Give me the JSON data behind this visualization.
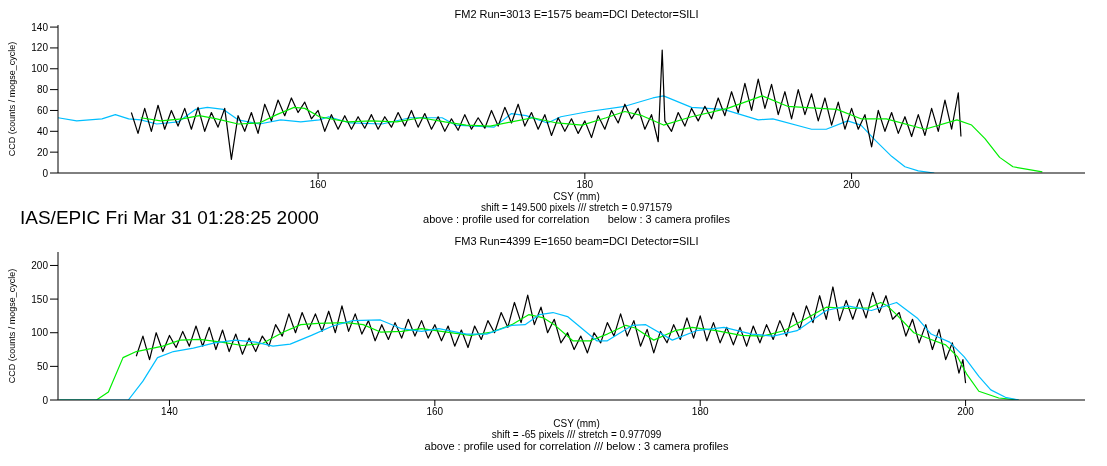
{
  "chart_data": [
    {
      "type": "line",
      "title": "FM2 Run=3013 E=1575 beam=DCI Detector=SILI",
      "xlabel": "CSY (mm)",
      "ylabel": "CCD (counts / mogse_cycle)",
      "xlim": [
        140.5,
        217.5
      ],
      "xticks": [
        160,
        180,
        200
      ],
      "ylim": [
        0,
        142
      ],
      "yticks": [
        0,
        20,
        40,
        60,
        80,
        100,
        120,
        140
      ],
      "marker": "none",
      "line_style": "solid",
      "annotations": [
        "shift = 149.500 pixels /// stretch = 0.971579",
        "above : profile used for correlation      below : 3 camera profiles",
        "IAS/EPIC Fri Mar 31 01:28:25 2000"
      ],
      "series": [
        {
          "color": "#00bfff",
          "x": [
            140.5,
            141.9,
            143.8,
            144.8,
            145.8,
            146.7,
            147.9,
            149.5,
            150.8,
            151.7,
            152.9,
            154.0,
            155.6,
            157.2,
            158.7,
            160.1,
            160.8,
            162.4,
            164.8,
            166.9,
            169.3,
            170.3,
            173.2,
            174.5,
            175.6,
            177.2,
            178.2,
            180.3,
            183,
            185.1,
            185.9,
            188,
            190.4,
            193,
            194.1,
            197,
            198.1,
            199.7,
            200.7,
            201.8,
            203,
            204,
            205,
            206.2
          ],
          "values": [
            53,
            50,
            52,
            56,
            52,
            51,
            47,
            49,
            61,
            63,
            61,
            51,
            47,
            51,
            49,
            51,
            54,
            48,
            47,
            53,
            53,
            46,
            44,
            57,
            55,
            48,
            54,
            59,
            64,
            72,
            74,
            63,
            61,
            51,
            52,
            42,
            42,
            50,
            46,
            31,
            16,
            6,
            2,
            0
          ]
        },
        {
          "color": "#000000",
          "x": [
            146,
            146.5,
            147,
            147.5,
            148,
            148.5,
            149,
            149.5,
            150,
            150.5,
            151,
            151.5,
            152,
            152.5,
            153,
            153.5,
            154,
            154.5,
            155,
            155.5,
            156,
            156.5,
            157,
            157.5,
            158,
            158.5,
            159,
            159.5,
            160,
            160.5,
            161,
            161.5,
            162,
            162.5,
            163,
            163.5,
            164,
            164.5,
            165,
            165.5,
            166,
            166.5,
            167,
            167.5,
            168,
            168.5,
            169,
            169.5,
            170,
            170.5,
            171,
            171.5,
            172,
            172.5,
            173,
            173.5,
            174,
            174.5,
            175,
            175.5,
            176,
            176.5,
            177,
            177.5,
            178,
            178.5,
            179,
            179.5,
            180,
            180.5,
            181,
            181.5,
            182,
            182.5,
            183,
            183.5,
            184,
            184.5,
            185,
            185.5,
            185.8,
            186,
            186.5,
            187,
            187.5,
            188,
            188.5,
            189,
            189.5,
            190,
            190.5,
            191,
            191.5,
            192,
            192.5,
            193,
            193.5,
            194,
            194.5,
            195,
            195.5,
            196,
            196.5,
            197,
            197.5,
            198,
            198.5,
            199,
            199.5,
            200,
            200.5,
            201,
            201.5,
            202,
            202.5,
            203,
            203.5,
            204,
            204.5,
            205,
            205.5,
            206,
            206.5,
            207,
            207.5,
            208,
            208.2
          ],
          "values": [
            58,
            38,
            62,
            40,
            65,
            42,
            60,
            45,
            62,
            42,
            63,
            40,
            58,
            44,
            62,
            13,
            55,
            40,
            58,
            38,
            66,
            50,
            70,
            55,
            72,
            58,
            68,
            52,
            60,
            40,
            56,
            42,
            55,
            42,
            54,
            43,
            56,
            42,
            54,
            44,
            58,
            45,
            60,
            44,
            57,
            42,
            54,
            40,
            52,
            41,
            56,
            42,
            53,
            43,
            60,
            45,
            63,
            48,
            66,
            45,
            58,
            42,
            56,
            36,
            53,
            40,
            52,
            38,
            50,
            34,
            55,
            42,
            60,
            48,
            66,
            52,
            62,
            42,
            56,
            30,
            118,
            50,
            40,
            58,
            45,
            62,
            50,
            64,
            52,
            72,
            55,
            78,
            58,
            86,
            60,
            90,
            62,
            85,
            56,
            78,
            52,
            80,
            56,
            76,
            50,
            72,
            46,
            68,
            42,
            62,
            42,
            56,
            25,
            60,
            40,
            58,
            38,
            54,
            35,
            56,
            36,
            62,
            40,
            70,
            42,
            77,
            35
          ]
        },
        {
          "color": "#00ee00",
          "x": [
            146.7,
            148.2,
            149.8,
            151.1,
            152.4,
            154.0,
            155.6,
            156.9,
            158.2,
            159.0,
            160.1,
            162.2,
            164.0,
            165.9,
            167.7,
            169.5,
            171.1,
            172.9,
            174.5,
            176.1,
            177.9,
            179.8,
            181.6,
            183,
            184.3,
            185.9,
            188,
            190.7,
            193.3,
            195.2,
            197.6,
            198.9,
            200.7,
            202.6,
            205.5,
            207.9,
            209,
            210,
            211.1,
            212.1,
            214.3
          ],
          "values": [
            53,
            50,
            52,
            55,
            52,
            47,
            48,
            56,
            63,
            62,
            54,
            49,
            50,
            49,
            53,
            49,
            46,
            45,
            49,
            53,
            48,
            46,
            53,
            59,
            55,
            46,
            54,
            62,
            74,
            64,
            62,
            61,
            52,
            52,
            42,
            51,
            46,
            33,
            15,
            6,
            1
          ]
        }
      ]
    },
    {
      "type": "line",
      "title": "FM3 Run=4399 E=1650 beam=DCI Detector=SILI",
      "xlabel": "CSY (mm)",
      "ylabel": "CCD (counts / mogse_cycle)",
      "xlim": [
        131.6,
        209
      ],
      "xticks": [
        140,
        160,
        180,
        200
      ],
      "ylim": [
        0,
        220
      ],
      "yticks": [
        0,
        50,
        100,
        150,
        200
      ],
      "marker": "none",
      "line_style": "solid",
      "annotations": [
        "shift = -65 pixels /// stretch = 0.977099",
        "above : profile used for correlation /// below : 3 camera profiles"
      ],
      "series": [
        {
          "color": "#000000",
          "x": [
            137.5,
            138,
            138.5,
            139,
            139.5,
            140,
            140.5,
            141,
            141.5,
            142,
            142.5,
            143,
            143.5,
            144,
            144.5,
            145,
            145.5,
            146,
            146.5,
            147,
            147.5,
            148,
            148.5,
            149,
            149.5,
            150,
            150.5,
            151,
            151.5,
            152,
            152.5,
            153,
            153.5,
            154,
            154.5,
            155,
            155.5,
            156,
            156.5,
            157,
            157.5,
            158,
            158.5,
            159,
            159.5,
            160,
            160.5,
            161,
            161.5,
            162,
            162.5,
            163,
            163.5,
            164,
            164.5,
            165,
            165.5,
            166,
            166.5,
            167,
            167.5,
            168,
            168.5,
            169,
            169.5,
            170,
            170.5,
            171,
            171.5,
            172,
            172.5,
            173,
            173.5,
            174,
            174.5,
            175,
            175.5,
            176,
            176.5,
            177,
            177.5,
            178,
            178.5,
            179,
            179.5,
            180,
            180.5,
            181,
            181.5,
            182,
            182.5,
            183,
            183.5,
            184,
            184.5,
            185,
            185.5,
            186,
            186.5,
            187,
            187.5,
            188,
            188.5,
            189,
            189.5,
            190,
            190.5,
            191,
            191.5,
            192,
            192.5,
            193,
            193.5,
            194,
            194.5,
            195,
            195.5,
            196,
            196.5,
            197,
            197.5,
            198,
            198.5,
            199,
            199.5,
            199.8,
            200
          ],
          "values": [
            65,
            95,
            60,
            100,
            72,
            96,
            78,
            102,
            80,
            110,
            80,
            108,
            75,
            104,
            72,
            98,
            68,
            92,
            72,
            95,
            80,
            112,
            95,
            128,
            100,
            130,
            105,
            128,
            102,
            132,
            100,
            140,
            102,
            128,
            98,
            118,
            88,
            112,
            90,
            115,
            92,
            120,
            95,
            118,
            92,
            112,
            88,
            110,
            80,
            104,
            78,
            110,
            90,
            118,
            100,
            130,
            108,
            145,
            115,
            156,
            112,
            138,
            100,
            120,
            85,
            100,
            75,
            95,
            70,
            100,
            85,
            115,
            95,
            128,
            95,
            118,
            80,
            105,
            70,
            102,
            85,
            112,
            90,
            122,
            92,
            125,
            88,
            115,
            85,
            108,
            82,
            108,
            80,
            110,
            85,
            112,
            90,
            118,
            95,
            130,
            105,
            140,
            115,
            155,
            120,
            168,
            118,
            148,
            120,
            150,
            122,
            160,
            130,
            155,
            120,
            130,
            95,
            120,
            85,
            112,
            75,
            105,
            60,
            85,
            40,
            60,
            25
          ]
        },
        {
          "color": "#00ee00",
          "x": [
            131.7,
            134.5,
            135.4,
            136.5,
            137.5,
            139.5,
            140.8,
            142.3,
            143.9,
            145.5,
            147,
            148.6,
            149.9,
            151.2,
            153.3,
            154.6,
            155.9,
            157.5,
            159,
            160.9,
            162.7,
            164.3,
            165.8,
            167.1,
            168.2,
            169,
            170.4,
            171.7,
            173,
            174.4,
            175.1,
            176.5,
            178.1,
            179.4,
            181.2,
            183.1,
            184.7,
            186.3,
            187.9,
            189.5,
            191.1,
            192.7,
            193.6,
            194.1,
            194.8,
            196.1,
            197.4,
            198.5,
            199.4,
            200.1,
            201,
            202.5,
            204
          ],
          "values": [
            0,
            0,
            12,
            63,
            72,
            80,
            89,
            90,
            86,
            81,
            84,
            101,
            112,
            114,
            115,
            112,
            101,
            102,
            106,
            101,
            96,
            101,
            112,
            127,
            122,
            112,
            88,
            88,
            98,
            111,
            107,
            89,
            103,
            108,
            103,
            96,
            95,
            103,
            120,
            138,
            136,
            137,
            145,
            140,
            127,
            100,
            90,
            82,
            64,
            38,
            13,
            3,
            0
          ]
        },
        {
          "color": "#00bfff",
          "x": [
            131.7,
            136.9,
            138,
            139.1,
            140.3,
            141.8,
            143.4,
            145,
            146.5,
            147.8,
            149.1,
            150.7,
            152.3,
            153.8,
            155.9,
            157.5,
            159,
            160.3,
            162.4,
            163.9,
            165.8,
            166.8,
            167.9,
            168.9,
            170,
            172.2,
            173,
            174.9,
            175.9,
            177.9,
            179.7,
            181.8,
            183.9,
            185.5,
            187.3,
            189.5,
            191.1,
            192.9,
            194.8,
            196.4,
            197.4,
            198.8,
            199.9,
            201,
            201.9,
            203,
            204
          ],
          "values": [
            0,
            0,
            28,
            63,
            72,
            77,
            85,
            89,
            86,
            80,
            83,
            96,
            110,
            118,
            119,
            106,
            102,
            106,
            98,
            98,
            111,
            112,
            127,
            130,
            124,
            88,
            88,
            111,
            112,
            89,
            103,
            108,
            98,
            95,
            103,
            133,
            140,
            133,
            145,
            121,
            98,
            86,
            64,
            35,
            15,
            4,
            0
          ]
        }
      ]
    }
  ]
}
